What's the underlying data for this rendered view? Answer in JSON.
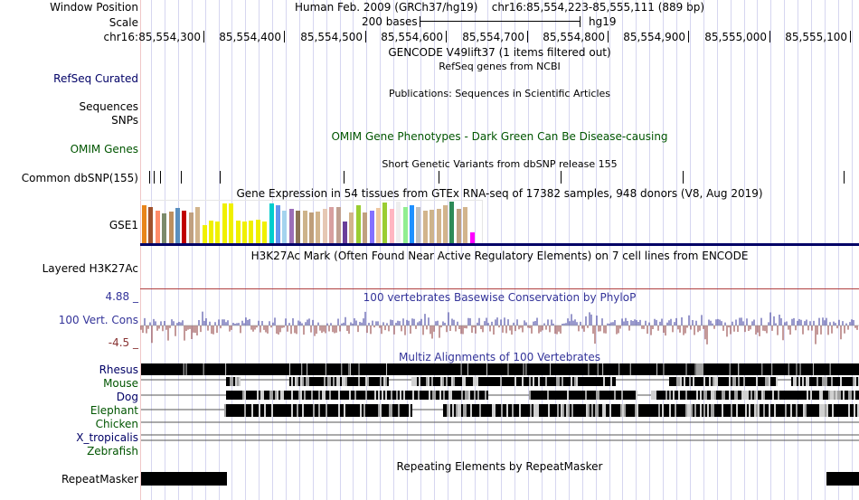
{
  "header": {
    "window_position_label": "Window Position",
    "assembly": "Human Feb. 2009 (GRCh37/hg19)",
    "position": "chr16:85,554,223-85,555,111 (889 bp)",
    "scale_label": "Scale",
    "scale_value": "200 bases",
    "scale_db": "hg19",
    "chrom_label": "chr16:",
    "ticks": [
      "85,554,300",
      "85,554,400",
      "85,554,500",
      "85,554,600",
      "85,554,700",
      "85,554,800",
      "85,554,900",
      "85,555,000",
      "85,555,100"
    ]
  },
  "tracks": {
    "gencode": {
      "title": "GENCODE V49lift37 (1 items filtered out)"
    },
    "refseq": {
      "label": "RefSeq Curated",
      "title": "RefSeq genes from NCBI",
      "color": "#000066"
    },
    "publications": {
      "title": "Publications: Sequences in Scientific Articles"
    },
    "sequences": {
      "label": "Sequences"
    },
    "snps": {
      "label": "SNPs"
    },
    "omim": {
      "label": "OMIM Genes",
      "title": "OMIM Gene Phenotypes - Dark Green Can Be Disease-causing",
      "color": "#005500"
    },
    "dbsnp": {
      "label": "Common dbSNP(155)",
      "title": "Short Genetic Variants from dbSNP release 155"
    },
    "gtex": {
      "label": "GSE1",
      "title": "Gene Expression in 54 tissues from GTEx RNA-seq of 17382 samples, 948 donors (V8, Aug 2019)"
    },
    "h3k27ac": {
      "label": "Layered H3K27Ac",
      "title": "H3K27Ac Mark (Often Found Near Active Regulatory Elements) on 7 cell lines from ENCODE"
    },
    "phylop": {
      "label": "100 Vert. Cons",
      "max": "4.88 _",
      "min": "-4.5 _",
      "title": "100 vertebrates Basewise Conservation by PhyloP",
      "color": "#333399",
      "neg_color": "#883333"
    },
    "multiz": {
      "title": "Multiz Alignments of 100 Vertebrates",
      "species": [
        "Rhesus",
        "Mouse",
        "Dog",
        "Elephant",
        "Chicken",
        "X_tropicalis",
        "Zebrafish"
      ],
      "species_colors": [
        "#000066",
        "#005500",
        "#000066",
        "#005500",
        "#005500",
        "#000066",
        "#005500"
      ]
    },
    "repeatmasker": {
      "label": "RepeatMasker",
      "title": "Repeating Elements by RepeatMasker"
    }
  }
}
